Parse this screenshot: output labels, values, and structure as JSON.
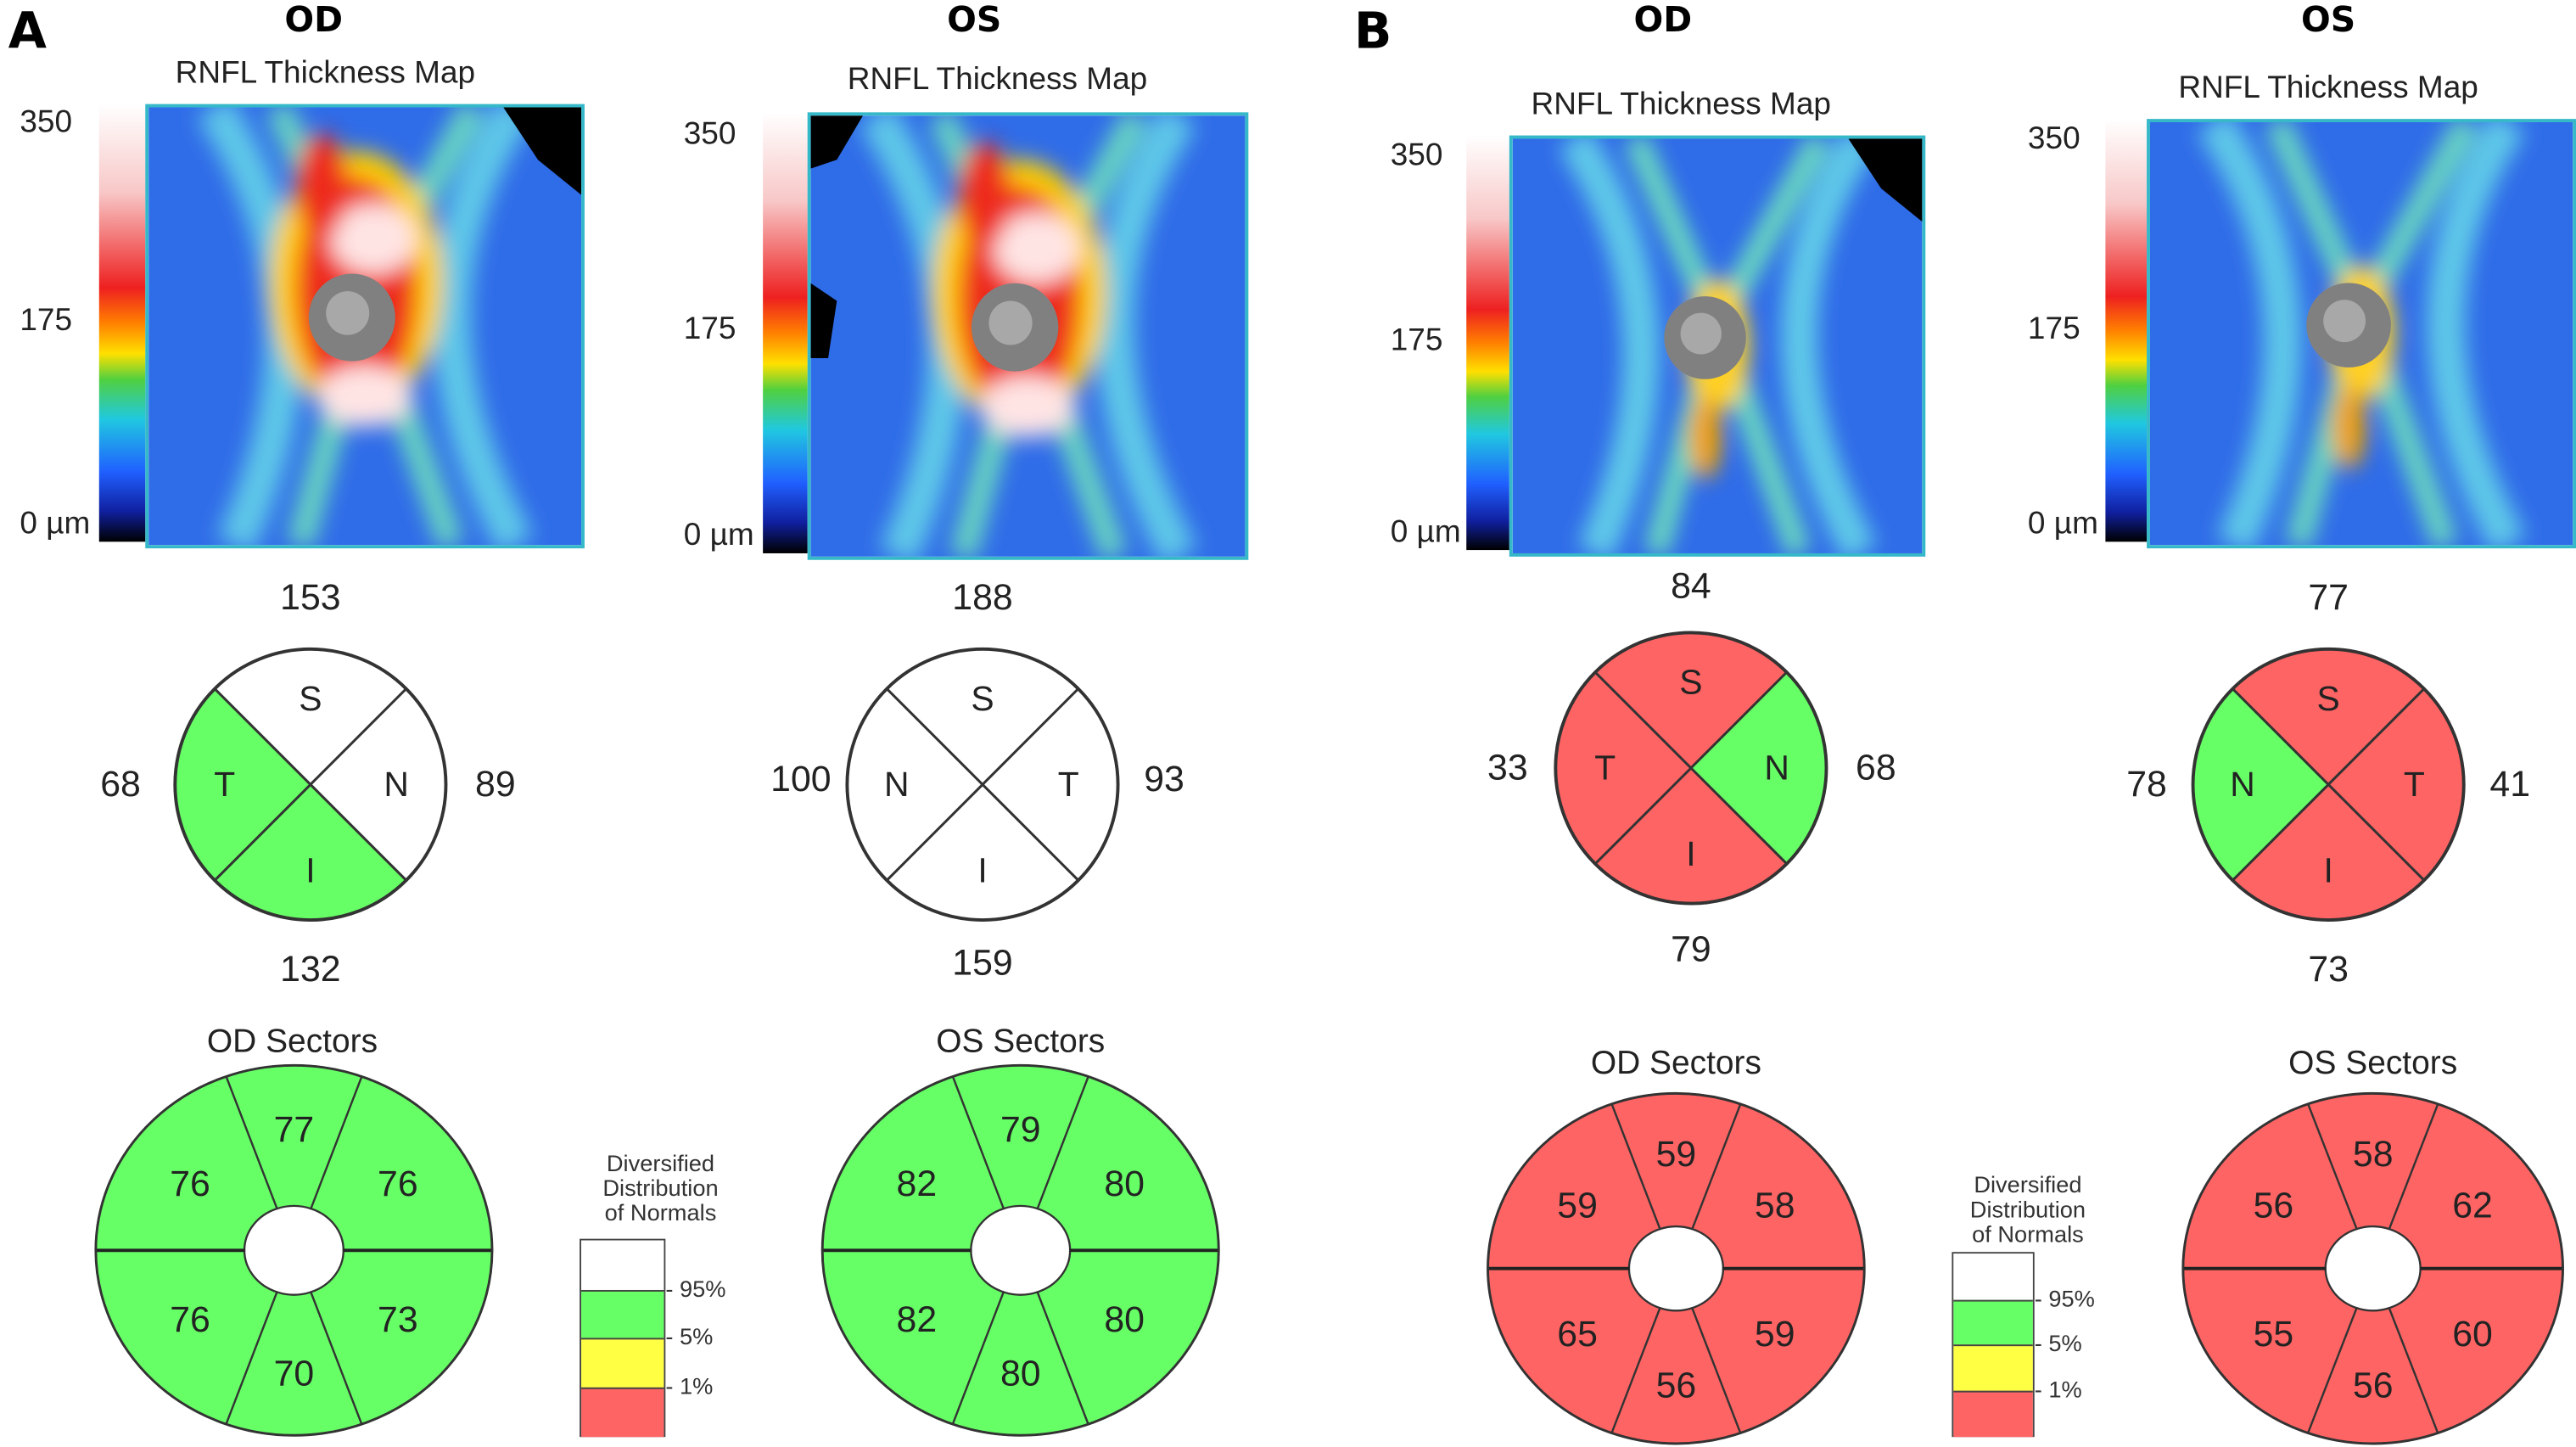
{
  "panels": [
    {
      "letter": "A",
      "eyes": [
        {
          "eye": "OD",
          "map_title": "RNFL Thickness Map",
          "scale_ticks": [
            "350",
            "175",
            "0 µm"
          ],
          "quadrants": {
            "S": {
              "label": "S",
              "value": "153",
              "status": "white"
            },
            "I": {
              "label": "I",
              "value": "132",
              "status": "green"
            },
            "left": {
              "label": "T",
              "value": "68",
              "status": "green"
            },
            "right": {
              "label": "N",
              "value": "89",
              "status": "white"
            }
          },
          "sectors_title": "OD Sectors",
          "sectors": {
            "top": {
              "value": "77",
              "status": "green"
            },
            "upper_left": {
              "value": "76",
              "status": "green"
            },
            "upper_right": {
              "value": "76",
              "status": "green"
            },
            "lower_left": {
              "value": "76",
              "status": "green"
            },
            "lower_right": {
              "value": "73",
              "status": "green"
            },
            "bottom": {
              "value": "70",
              "status": "green"
            }
          }
        },
        {
          "eye": "OS",
          "map_title": "RNFL Thickness Map",
          "scale_ticks": [
            "350",
            "175",
            "0 µm"
          ],
          "quadrants": {
            "S": {
              "label": "S",
              "value": "188",
              "status": "white"
            },
            "I": {
              "label": "I",
              "value": "159",
              "status": "white"
            },
            "left": {
              "label": "N",
              "value": "100",
              "status": "white"
            },
            "right": {
              "label": "T",
              "value": "93",
              "status": "white"
            }
          },
          "sectors_title": "OS Sectors",
          "sectors": {
            "top": {
              "value": "79",
              "status": "green"
            },
            "upper_left": {
              "value": "82",
              "status": "green"
            },
            "upper_right": {
              "value": "80",
              "status": "green"
            },
            "lower_left": {
              "value": "82",
              "status": "green"
            },
            "lower_right": {
              "value": "80",
              "status": "green"
            },
            "bottom": {
              "value": "80",
              "status": "green"
            }
          }
        }
      ],
      "legend": {
        "title": [
          "Diversified",
          "Distribution",
          "of Normals"
        ],
        "levels": [
          "95%",
          "5%",
          "1%"
        ]
      }
    },
    {
      "letter": "B",
      "eyes": [
        {
          "eye": "OD",
          "map_title": "RNFL Thickness Map",
          "scale_ticks": [
            "350",
            "175",
            "0 µm"
          ],
          "quadrants": {
            "S": {
              "label": "S",
              "value": "84",
              "status": "red"
            },
            "I": {
              "label": "I",
              "value": "79",
              "status": "red"
            },
            "left": {
              "label": "T",
              "value": "33",
              "status": "red"
            },
            "right": {
              "label": "N",
              "value": "68",
              "status": "green"
            }
          },
          "sectors_title": "OD Sectors",
          "sectors": {
            "top": {
              "value": "59",
              "status": "red"
            },
            "upper_left": {
              "value": "59",
              "status": "red"
            },
            "upper_right": {
              "value": "58",
              "status": "red"
            },
            "lower_left": {
              "value": "65",
              "status": "red"
            },
            "lower_right": {
              "value": "59",
              "status": "red"
            },
            "bottom": {
              "value": "56",
              "status": "red"
            }
          }
        },
        {
          "eye": "OS",
          "map_title": "RNFL Thickness Map",
          "scale_ticks": [
            "350",
            "175",
            "0 µm"
          ],
          "quadrants": {
            "S": {
              "label": "S",
              "value": "77",
              "status": "red"
            },
            "I": {
              "label": "I",
              "value": "73",
              "status": "red"
            },
            "left": {
              "label": "N",
              "value": "78",
              "status": "green"
            },
            "right": {
              "label": "T",
              "value": "41",
              "status": "red"
            }
          },
          "sectors_title": "OS Sectors",
          "sectors": {
            "top": {
              "value": "58",
              "status": "red"
            },
            "upper_left": {
              "value": "56",
              "status": "red"
            },
            "upper_right": {
              "value": "62",
              "status": "red"
            },
            "lower_left": {
              "value": "55",
              "status": "red"
            },
            "lower_right": {
              "value": "60",
              "status": "red"
            },
            "bottom": {
              "value": "56",
              "status": "red"
            }
          }
        }
      ],
      "legend": {
        "title": [
          "Diversified",
          "Distribution",
          "of Normals"
        ],
        "levels": [
          "95%",
          "5%",
          "1%"
        ]
      }
    }
  ],
  "status_colors": {
    "white": "#ffffff",
    "green": "#66ff66",
    "yellow": "#ffff44",
    "red": "#ff6464"
  }
}
